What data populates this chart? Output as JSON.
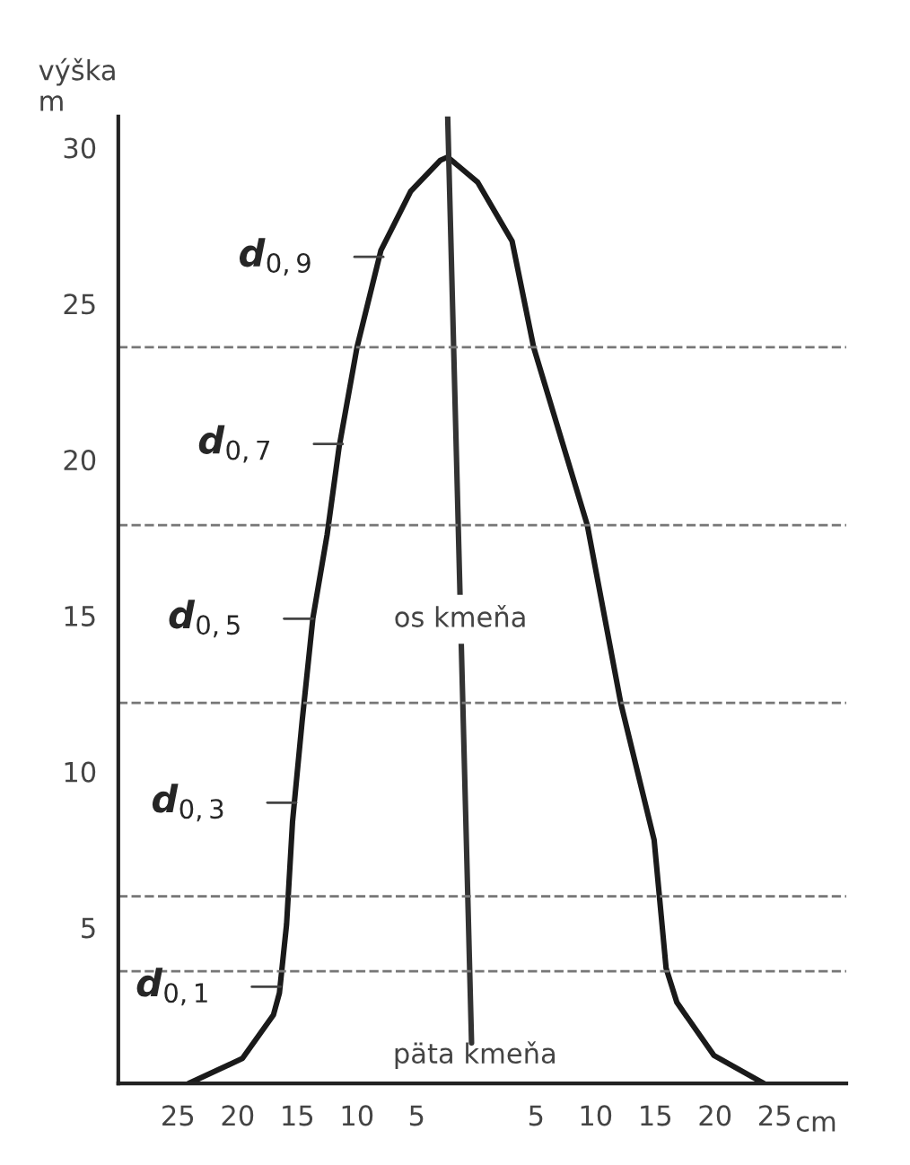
{
  "chart_data": {
    "type": "line",
    "ylabel": "výška\nm",
    "xlabel": "cm",
    "series": [
      {
        "color": "#1a1a1a",
        "x": [
          -24.1,
          -19.6,
          -17.0,
          -16.5,
          -15.9,
          -15.4,
          -14.6,
          -13.7,
          -12.5,
          -11.5,
          -10.0,
          -8.0,
          -5.5,
          -3.0,
          -2.4,
          0.1,
          3.0,
          4.8,
          9.3,
          12.1,
          14.9,
          15.9,
          16.8,
          19.9,
          24.1
        ],
        "values": [
          0,
          0.8,
          2.2,
          2.9,
          5.1,
          8.4,
          11.6,
          14.9,
          17.6,
          20.4,
          23.6,
          26.7,
          28.6,
          29.6,
          29.7,
          28.9,
          27.0,
          23.6,
          17.9,
          12.2,
          7.8,
          3.7,
          2.6,
          0.9,
          0
        ]
      },
      {
        "color": "#333333",
        "x": [
          -2.4,
          -0.4
        ],
        "values": [
          31,
          1.3
        ]
      }
    ],
    "ref_lines": [
      {
        "axis": "y",
        "value": 23.6,
        "color": "#777777",
        "line_style": "dashed"
      },
      {
        "axis": "y",
        "value": 17.9,
        "color": "#777777",
        "line_style": "dashed"
      },
      {
        "axis": "y",
        "value": 12.2,
        "color": "#777777",
        "line_style": "dashed"
      },
      {
        "axis": "y",
        "value": 6.0,
        "color": "#777777",
        "line_style": "dashed"
      },
      {
        "axis": "y",
        "value": 3.6,
        "color": "#777777",
        "line_style": "dashed"
      }
    ],
    "annotations": [
      {
        "text": "d$_{0,9}$",
        "x": -7.8,
        "y": 26.5
      },
      {
        "text": "d$_{0,7}$",
        "x": -11.2,
        "y": 20.5
      },
      {
        "text": "d$_{0,5}$",
        "x": -13.7,
        "y": 14.9
      },
      {
        "text": "d$_{0,3}$",
        "x": -15.1,
        "y": 9.0
      },
      {
        "text": "d$_{0,1}$",
        "x": -16.4,
        "y": 3.1
      },
      "os kmeňa",
      "päta kmeňa"
    ],
    "xlim": [
      -30,
      31
    ],
    "ylim": [
      0,
      31
    ],
    "xticks": [
      {
        "value": -25,
        "label": "25"
      },
      {
        "value": -20,
        "label": "20"
      },
      {
        "value": -15,
        "label": "15"
      },
      {
        "value": -10,
        "label": "10"
      },
      {
        "value": -5,
        "label": "5"
      },
      5,
      10,
      15,
      20,
      25
    ],
    "yticks": [
      5,
      10,
      15,
      20,
      25,
      30
    ],
    "marker": "none",
    "line_style": "solid",
    "grid": false,
    "legend": false
  }
}
